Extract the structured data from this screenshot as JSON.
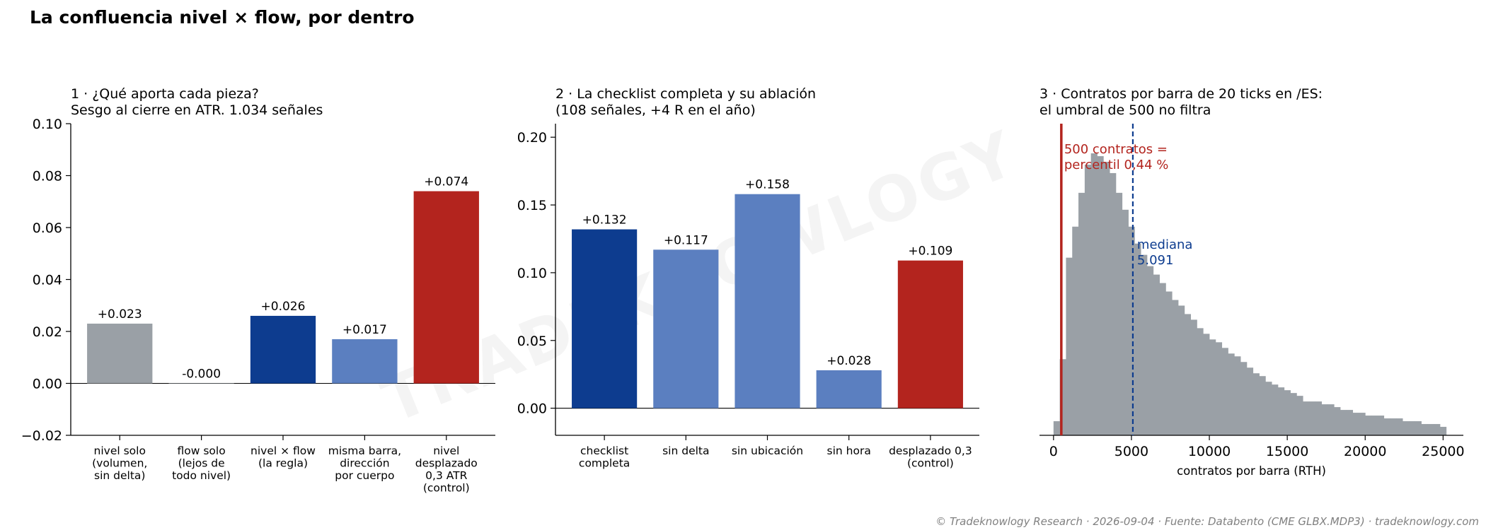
{
  "figure_title": "La confluencia nivel × flow, por dentro",
  "watermark": "TRADEKNOWLOGY",
  "footer": "© Tradeknowlogy Research   ·   2026-09-04   ·   Fuente: Databento (CME GLBX.MDP3)   ·   tradeknowlogy.com",
  "colors": {
    "grey": "#9aa0a6",
    "navy": "#0d3c8f",
    "blue": "#5b7fc0",
    "red": "#b3241e"
  },
  "chart_data": [
    {
      "type": "bar",
      "title_line1": "1 · ¿Qué aporta cada pieza?",
      "title_line2": "Sesgo al cierre en ATR. 1.034 señales",
      "categories": [
        [
          "nivel solo",
          "(volumen,",
          "sin delta)"
        ],
        [
          "flow solo",
          "(lejos de",
          "todo nivel)"
        ],
        [
          "nivel × flow",
          "(la regla)"
        ],
        [
          "misma barra,",
          "dirección",
          "por cuerpo"
        ],
        [
          "nivel",
          "desplazado",
          "0,3 ATR",
          "(control)"
        ]
      ],
      "values": [
        0.023,
        -0.0001,
        0.026,
        0.017,
        0.074
      ],
      "data_labels": [
        "+0.023",
        "-0.000",
        "+0.026",
        "+0.017",
        "+0.074"
      ],
      "bar_colors": [
        "grey",
        "grey",
        "navy",
        "blue",
        "red"
      ],
      "ylim": [
        -0.02,
        0.1
      ],
      "yticks": [
        -0.02,
        0.0,
        0.02,
        0.04,
        0.06,
        0.08,
        0.1
      ],
      "ytick_labels": [
        "−0.02",
        "0.00",
        "0.02",
        "0.04",
        "0.06",
        "0.08",
        "0.10"
      ]
    },
    {
      "type": "bar",
      "title_line1": "2 · La checklist completa y su ablación",
      "title_line2": "(108 señales, +4 R en el año)",
      "categories": [
        [
          "checklist",
          "completa"
        ],
        [
          "sin delta"
        ],
        [
          "sin ubicación"
        ],
        [
          "sin hora"
        ],
        [
          "desplazado 0,3",
          "(control)"
        ]
      ],
      "values": [
        0.132,
        0.117,
        0.158,
        0.028,
        0.109
      ],
      "data_labels": [
        "+0.132",
        "+0.117",
        "+0.158",
        "+0.028",
        "+0.109"
      ],
      "bar_colors": [
        "navy",
        "blue",
        "blue",
        "blue",
        "red"
      ],
      "ylim": [
        -0.02,
        0.21
      ],
      "yticks": [
        0.0,
        0.05,
        0.1,
        0.15,
        0.2
      ],
      "ytick_labels": [
        "0.00",
        "0.05",
        "0.10",
        "0.15",
        "0.20"
      ]
    },
    {
      "type": "histogram",
      "title_line1": "3 · Contratos por barra de 20 ticks en /ES:",
      "title_line2": "el umbral de 500 no filtra",
      "xlabel": "contratos por barra (RTH)",
      "xlim": [
        -900,
        26300
      ],
      "xticks": [
        0,
        5000,
        10000,
        15000,
        20000,
        25000
      ],
      "xtick_labels": [
        "0",
        "5000",
        "10000",
        "15000",
        "20000",
        "25000"
      ],
      "bin_start": 0,
      "bin_width": 400,
      "counts": [
        0.05,
        0.27,
        0.63,
        0.74,
        0.86,
        0.96,
        1.0,
        0.99,
        0.97,
        0.93,
        0.86,
        0.8,
        0.74,
        0.68,
        0.64,
        0.6,
        0.57,
        0.54,
        0.51,
        0.48,
        0.46,
        0.43,
        0.41,
        0.38,
        0.36,
        0.34,
        0.33,
        0.31,
        0.29,
        0.28,
        0.26,
        0.24,
        0.22,
        0.21,
        0.19,
        0.18,
        0.17,
        0.16,
        0.15,
        0.14,
        0.12,
        0.12,
        0.12,
        0.11,
        0.11,
        0.1,
        0.09,
        0.09,
        0.08,
        0.08,
        0.07,
        0.07,
        0.07,
        0.06,
        0.06,
        0.06,
        0.05,
        0.05,
        0.05,
        0.04,
        0.04,
        0.04,
        0.03
      ],
      "threshold": {
        "value": 500,
        "line1": "500 contratos =",
        "line2": "percentil 0,44 %"
      },
      "median": {
        "value": 5091,
        "line1": "mediana",
        "line2": "5.091"
      }
    }
  ]
}
